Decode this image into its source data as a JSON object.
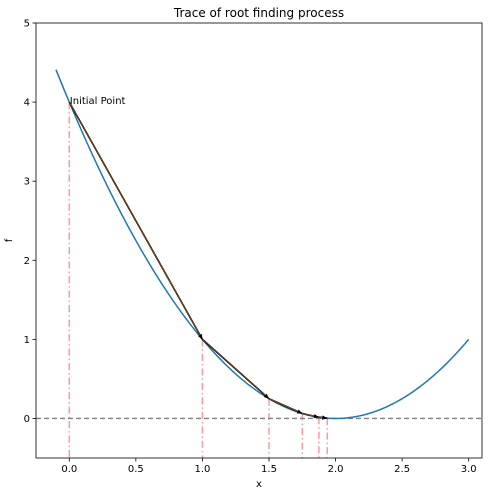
{
  "chart_data": {
    "type": "line",
    "title": "Trace of root finding process",
    "xlabel": "x",
    "ylabel": "f",
    "xlim": [
      -0.25,
      3.1
    ],
    "ylim": [
      -0.5,
      5
    ],
    "xticks": [
      0.0,
      0.5,
      1.0,
      1.5,
      2.0,
      2.5,
      3.0
    ],
    "xtick_labels": [
      "0.0",
      "0.5",
      "1.0",
      "1.5",
      "2.0",
      "2.5",
      "3.0"
    ],
    "yticks": [
      0,
      1,
      2,
      3,
      4,
      5
    ],
    "ytick_labels": [
      "0",
      "1",
      "2",
      "3",
      "4",
      "5"
    ],
    "grid": false,
    "curve": {
      "function": "(x - 2)^2",
      "x_range": [
        -0.1,
        3.0
      ],
      "color": "#1f77b4"
    },
    "iterates_x": [
      0.0,
      1.0,
      1.5,
      1.75,
      1.875,
      1.9375
    ],
    "iterates_f": [
      4.0,
      1.0,
      0.25,
      0.0625,
      0.015625,
      0.00390625
    ],
    "tangent_color": "#000000",
    "tangent_inner_color": "#ff7f0e",
    "drop_line_color": "#ff9999",
    "zero_line": {
      "y": 0,
      "color": "#808080"
    },
    "annotation": {
      "text": "Initial Point",
      "x": 0.0,
      "y": 4.0
    }
  }
}
